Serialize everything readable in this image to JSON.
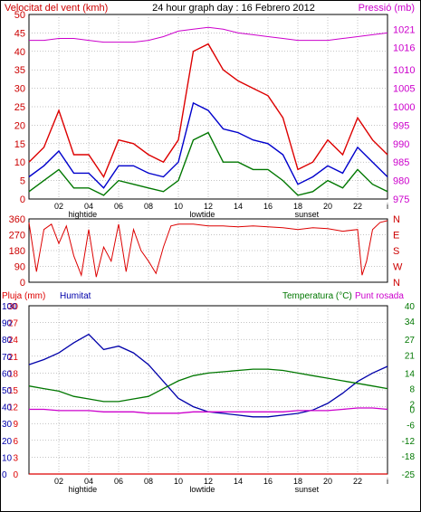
{
  "header": {
    "title": "24 hour graph day : 16 Febrero 2012",
    "left_label": "Velocitat del vent (kmh)",
    "right_label": "Pressió (mb)"
  },
  "colors": {
    "wind_max": "#dd0000",
    "wind_avg": "#0000cc",
    "wind_min": "#007700",
    "pressure": "#cc00cc",
    "direction": "#dd0000",
    "humidity": "#0000aa",
    "temperature": "#007700",
    "dewpoint": "#cc00cc",
    "rain": "#dd0000",
    "grid": "#888888",
    "tick_text_left": "#cc0000",
    "tick_text_right_pressure": "#cc00cc",
    "tick_text_right_temp": "#007700"
  },
  "x_axis": {
    "hour_labels": [
      "02",
      "04",
      "06",
      "08",
      "10",
      "12",
      "14",
      "16",
      "18",
      "20",
      "22",
      "i"
    ],
    "events_top": [
      {
        "label": "hightide",
        "hour": 3.6
      },
      {
        "label": "lowtide",
        "hour": 11.6
      },
      {
        "label": "sunset",
        "hour": 18.6
      }
    ],
    "events_bottom": [
      {
        "label": "hightide",
        "hour": 3.6
      },
      {
        "label": "lowtide",
        "hour": 11.6
      },
      {
        "label": "sunset",
        "hour": 18.6
      }
    ]
  },
  "chart_data": [
    {
      "type": "line",
      "title": "24 hour graph day : 16 Febrero 2012",
      "ylabel": "Velocitat del vent (kmh)",
      "y2label": "Pressió (mb)",
      "ylim": [
        0,
        50
      ],
      "y2lim": [
        975,
        1025
      ],
      "yticks": [
        0,
        5,
        10,
        15,
        20,
        25,
        30,
        35,
        40,
        45,
        50
      ],
      "y2ticks": [
        975,
        980,
        985,
        990,
        995,
        1000,
        1005,
        1010,
        1016,
        1021
      ],
      "xlim": [
        0,
        24
      ],
      "series": [
        {
          "name": "wind_max",
          "axis": "left",
          "x": [
            0,
            1,
            2,
            3,
            4,
            5,
            6,
            7,
            8,
            9,
            10,
            11,
            12,
            13,
            14,
            15,
            16,
            17,
            18,
            19,
            20,
            21,
            22,
            23,
            24
          ],
          "values": [
            10,
            14,
            24,
            12,
            12,
            6,
            16,
            15,
            12,
            10,
            16,
            40,
            42,
            35,
            32,
            30,
            28,
            22,
            8,
            10,
            16,
            12,
            22,
            16,
            12
          ]
        },
        {
          "name": "wind_avg",
          "axis": "left",
          "x": [
            0,
            1,
            2,
            3,
            4,
            5,
            6,
            7,
            8,
            9,
            10,
            11,
            12,
            13,
            14,
            15,
            16,
            17,
            18,
            19,
            20,
            21,
            22,
            23,
            24
          ],
          "values": [
            6,
            9,
            13,
            7,
            7,
            3,
            9,
            9,
            7,
            6,
            10,
            26,
            24,
            19,
            18,
            16,
            15,
            12,
            4,
            6,
            9,
            7,
            14,
            10,
            6
          ]
        },
        {
          "name": "wind_min",
          "axis": "left",
          "x": [
            0,
            1,
            2,
            3,
            4,
            5,
            6,
            7,
            8,
            9,
            10,
            11,
            12,
            13,
            14,
            15,
            16,
            17,
            18,
            19,
            20,
            21,
            22,
            23,
            24
          ],
          "values": [
            2,
            5,
            8,
            3,
            3,
            1,
            5,
            4,
            3,
            2,
            5,
            16,
            18,
            10,
            10,
            8,
            8,
            5,
            1,
            2,
            5,
            3,
            8,
            4,
            2
          ]
        },
        {
          "name": "pressure",
          "axis": "right",
          "x": [
            0,
            1,
            2,
            3,
            4,
            5,
            6,
            7,
            8,
            9,
            10,
            11,
            12,
            13,
            14,
            15,
            16,
            17,
            18,
            19,
            20,
            21,
            22,
            23,
            24
          ],
          "values": [
            1018,
            1018,
            1018.5,
            1018.5,
            1018,
            1017.5,
            1017.5,
            1017.5,
            1018,
            1019,
            1020.5,
            1021,
            1021.5,
            1021,
            1020,
            1019.5,
            1019,
            1018.5,
            1018,
            1018,
            1018,
            1018.5,
            1019,
            1019.5,
            1020
          ]
        }
      ]
    },
    {
      "type": "line",
      "ylabel": "",
      "ylim": [
        0,
        360
      ],
      "yticks": [
        0,
        90,
        180,
        270,
        360
      ],
      "y2ticks": [
        "N",
        "E",
        "S",
        "W",
        "N"
      ],
      "xlim": [
        0,
        24
      ],
      "series": [
        {
          "name": "direction",
          "x": [
            0,
            0.5,
            1,
            1.5,
            2,
            2.5,
            3,
            3.5,
            4,
            4.5,
            5,
            5.5,
            6,
            6.5,
            7,
            7.5,
            8,
            8.5,
            9,
            9.5,
            10,
            11,
            12,
            13,
            14,
            15,
            16,
            17,
            18,
            19,
            20,
            21,
            22,
            22.3,
            22.6,
            23,
            23.5,
            24
          ],
          "values": [
            340,
            60,
            300,
            330,
            220,
            320,
            150,
            40,
            300,
            30,
            200,
            120,
            330,
            60,
            300,
            180,
            120,
            50,
            200,
            320,
            330,
            330,
            320,
            320,
            315,
            320,
            315,
            310,
            300,
            310,
            305,
            290,
            300,
            40,
            120,
            300,
            340,
            350
          ]
        }
      ]
    },
    {
      "type": "line",
      "ylabel": "Pluja (mm)",
      "y2label": "Humitat",
      "y3label": "Temperatura (°C)",
      "y4label": "Punt rosada",
      "ylim": [
        0,
        30
      ],
      "yticks": [
        0,
        3,
        6,
        9,
        12,
        15,
        18,
        21,
        24,
        27,
        30
      ],
      "y_hum_ticks": [
        0,
        10,
        20,
        30,
        40,
        50,
        60,
        70,
        80,
        90,
        100
      ],
      "y2lim": [
        -25,
        40
      ],
      "y2ticks": [
        -25,
        -18,
        -12,
        -6,
        0,
        2,
        8,
        14,
        21,
        27,
        34,
        40
      ],
      "xlim": [
        0,
        24
      ],
      "series": [
        {
          "name": "humidity",
          "axis": "humidity",
          "x": [
            0,
            1,
            2,
            3,
            4,
            5,
            6,
            7,
            8,
            9,
            10,
            11,
            12,
            13,
            14,
            15,
            16,
            17,
            18,
            19,
            20,
            21,
            22,
            23,
            24
          ],
          "values": [
            65,
            68,
            72,
            78,
            83,
            74,
            76,
            72,
            65,
            55,
            45,
            40,
            37,
            36,
            35,
            34,
            34,
            35,
            36,
            38,
            42,
            48,
            55,
            60,
            64
          ]
        },
        {
          "name": "temperature",
          "axis": "temp",
          "x": [
            0,
            1,
            2,
            3,
            4,
            5,
            6,
            7,
            8,
            9,
            10,
            11,
            12,
            13,
            14,
            15,
            16,
            17,
            18,
            19,
            20,
            21,
            22,
            23,
            24
          ],
          "values": [
            9,
            8,
            7,
            5,
            4,
            3,
            3,
            4,
            5,
            8,
            11,
            13,
            14,
            14.5,
            15,
            15.5,
            15.5,
            15,
            14,
            13,
            12,
            11,
            10,
            9,
            8
          ]
        },
        {
          "name": "dewpoint",
          "axis": "temp",
          "x": [
            0,
            1,
            2,
            3,
            4,
            5,
            6,
            7,
            8,
            9,
            10,
            11,
            12,
            13,
            14,
            15,
            16,
            17,
            18,
            19,
            20,
            21,
            22,
            23,
            24
          ],
          "values": [
            0,
            0,
            -0.5,
            -0.5,
            -0.5,
            -1,
            -1,
            -1,
            -1.5,
            -1.5,
            -1.5,
            -1,
            -1,
            -1,
            -1,
            -1,
            -1,
            -1,
            -0.5,
            -0.5,
            -0.5,
            0,
            0.5,
            0.5,
            0
          ]
        },
        {
          "name": "rain",
          "axis": "rain",
          "x": [
            0,
            24
          ],
          "values": [
            0,
            0
          ]
        }
      ]
    }
  ]
}
